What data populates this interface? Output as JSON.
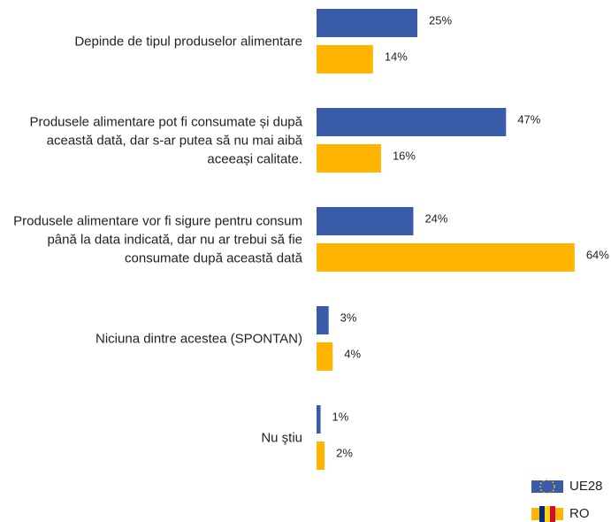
{
  "chart_data": {
    "type": "hbar",
    "categories": [
      "Depinde de tipul produselor alimentare",
      "Produsele alimentare pot fi consumate și după această dată, dar s-ar putea să nu mai aibă aceeași calitate.",
      "Produsele alimentare vor fi sigure pentru consum până la data indicată, dar nu ar trebui să fie consumate după această dată",
      "Niciuna dintre acestea (SPONTAN)",
      "Nu ştiu"
    ],
    "series": [
      {
        "name": "UE28",
        "color": "#3a5ba8",
        "values": [
          25,
          47,
          24,
          3,
          1
        ],
        "value_labels": [
          "25%",
          "47%",
          "24%",
          "3%",
          "1%"
        ]
      },
      {
        "name": "RO",
        "color": "#ffb400",
        "values": [
          14,
          16,
          64,
          4,
          2
        ],
        "value_labels": [
          "14%",
          "16%",
          "64%",
          "4%",
          "2%"
        ]
      }
    ],
    "legend": "bottom-right"
  }
}
